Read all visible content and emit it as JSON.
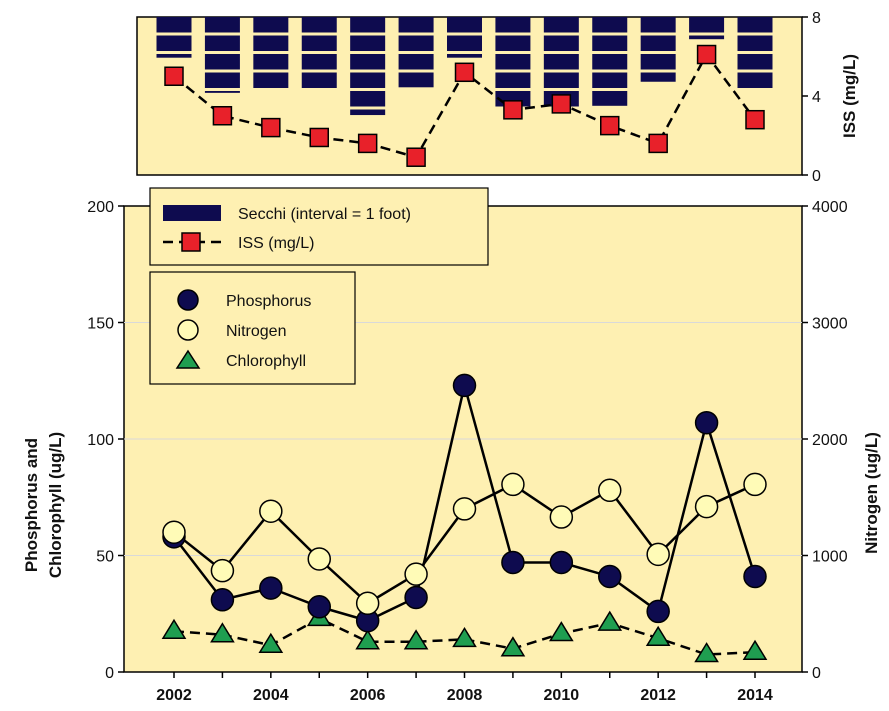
{
  "chart_data": [
    {
      "type": "bar",
      "panel": "top",
      "x": [
        2002,
        2003,
        2004,
        2005,
        2006,
        2007,
        2008,
        2009,
        2010,
        2011,
        2012,
        2013,
        2014
      ],
      "series": [
        {
          "name": "Secchi (interval = 1 foot)",
          "unit": "feet",
          "values": [
            2.2,
            4.1,
            4.0,
            4.0,
            5.3,
            3.8,
            2.2,
            4.9,
            5.0,
            4.8,
            3.5,
            1.2,
            4.0
          ],
          "color": "#0e0b4f"
        },
        {
          "name": "ISS (mg/L)",
          "values": [
            5.0,
            3.0,
            2.4,
            1.9,
            1.6,
            0.9,
            5.2,
            3.3,
            3.6,
            2.5,
            1.6,
            6.1,
            2.8
          ],
          "color": "#e8212a",
          "line_style": "dashed"
        }
      ],
      "y_right_label": "ISS (mg/L)",
      "y_right_ticks": [
        0,
        4,
        8
      ],
      "y_right_range": [
        0,
        8
      ],
      "legend_position": "bottom-left"
    },
    {
      "type": "line",
      "panel": "bottom",
      "x": [
        2002,
        2003,
        2004,
        2005,
        2006,
        2007,
        2008,
        2009,
        2010,
        2011,
        2012,
        2013,
        2014
      ],
      "x_ticks": [
        "2002",
        "2004",
        "2006",
        "2008",
        "2010",
        "2012",
        "2014"
      ],
      "series": [
        {
          "name": "Phosphorus",
          "axis": "left",
          "values": [
            58,
            31,
            36,
            28,
            22,
            32,
            123,
            47,
            47,
            41,
            26,
            107,
            41
          ],
          "color": "#0e0b4f"
        },
        {
          "name": "Nitrogen",
          "axis": "right",
          "values": [
            1200,
            870,
            1380,
            970,
            590,
            840,
            1400,
            1610,
            1330,
            1560,
            1010,
            1420,
            1610
          ],
          "color": "#fffbb7"
        },
        {
          "name": "Chlorophyll",
          "axis": "left",
          "values": [
            17.5,
            16,
            11.5,
            23,
            13,
            13,
            14,
            10,
            16.5,
            21,
            14.5,
            7.5,
            8.5
          ],
          "color": "#1f9e50"
        }
      ],
      "y_left_label_lines": [
        "Phosphorus and",
        "Chlorophyll (ug/L)"
      ],
      "y_left_ticks": [
        0,
        50,
        100,
        150,
        200
      ],
      "y_left_range": [
        0,
        200
      ],
      "y_right_label": "Nitrogen (ug/L)",
      "y_right_ticks": [
        0,
        1000,
        2000,
        3000,
        4000
      ],
      "y_right_range": [
        0,
        4000
      ],
      "grid": true,
      "legend_position": "top-left"
    }
  ],
  "colors": {
    "background": "#fef0b2",
    "grid": "#d9d9d9",
    "secchi": "#0e0b4f",
    "iss": "#e8212a",
    "phosphorus": "#0e0b4f",
    "nitrogen": "#fffbb7",
    "chlorophyll": "#1f9e50"
  }
}
